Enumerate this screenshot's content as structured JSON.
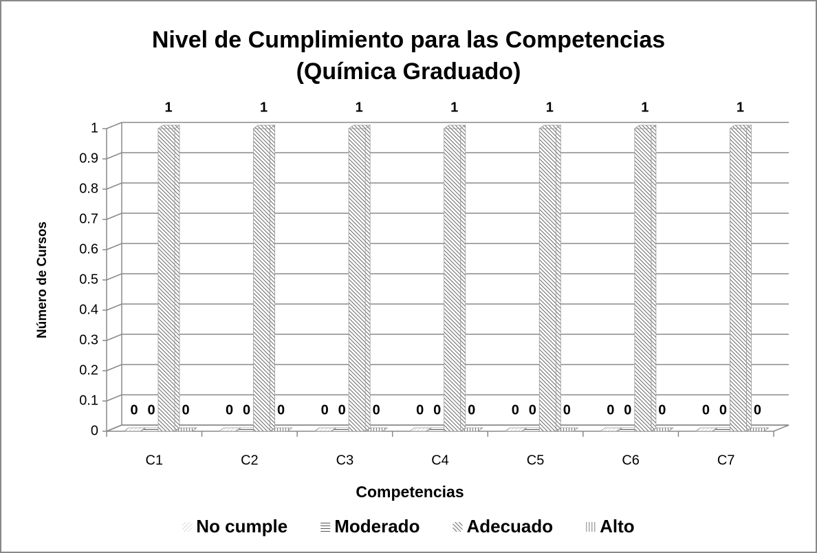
{
  "chart_data": {
    "type": "bar",
    "title": "Nivel de Cumplimiento para las Competencias",
    "subtitle": "(Química Graduado)",
    "x_label": "Competencias",
    "y_label": "Número de Cursos",
    "categories": [
      "C1",
      "C2",
      "C3",
      "C4",
      "C5",
      "C6",
      "C7"
    ],
    "series": [
      {
        "name": "No cumple",
        "color": "#bbbbbb",
        "values": [
          0,
          0,
          0,
          0,
          0,
          0,
          0
        ]
      },
      {
        "name": "Moderado",
        "color": "#555555",
        "values": [
          0,
          0,
          0,
          0,
          0,
          0,
          0
        ]
      },
      {
        "name": "Adecuado",
        "color": "#666666",
        "values": [
          1,
          1,
          1,
          1,
          1,
          1,
          1
        ]
      },
      {
        "name": "Alto",
        "color": "#777777",
        "values": [
          0,
          0,
          0,
          0,
          0,
          0,
          0
        ]
      }
    ],
    "ylim": [
      0,
      1
    ],
    "yticks": [
      0,
      0.1,
      0.2,
      0.3,
      0.4,
      0.5,
      0.6,
      0.7,
      0.8,
      0.9,
      1
    ],
    "grid": true,
    "legend": "bottom"
  }
}
